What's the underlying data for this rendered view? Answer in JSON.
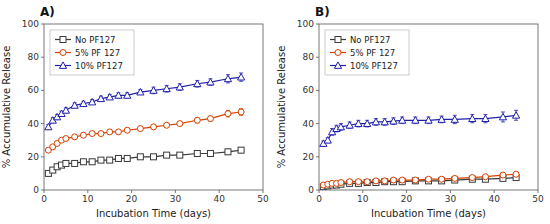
{
  "chart_data": [
    {
      "type": "line",
      "title": "A)",
      "xlabel": "Incubation Time (days)",
      "ylabel": "% Accumulative Release",
      "x": [
        1,
        2,
        3,
        4,
        5,
        7,
        9,
        11,
        13,
        15,
        17,
        19,
        22,
        25,
        28,
        31,
        35,
        38,
        42,
        45
      ],
      "series": [
        {
          "name": "No PF127",
          "color": "#3a3a3a",
          "marker": "square",
          "line_style": "solid",
          "values": [
            10,
            12,
            14,
            15,
            16,
            16,
            17,
            17,
            18,
            18,
            19,
            19,
            20,
            20,
            21,
            21,
            22,
            22,
            23,
            24
          ],
          "errors": [
            1,
            1,
            1,
            1,
            1,
            1,
            1,
            1,
            1,
            1,
            1,
            1,
            1,
            1,
            1,
            1,
            1.5,
            1.5,
            1.5,
            1.5
          ]
        },
        {
          "name": "5% PF 127",
          "color": "#d44000",
          "marker": "circle",
          "line_style": "solid",
          "values": [
            24,
            26,
            28,
            30,
            31,
            32,
            33,
            34,
            34,
            35,
            35,
            36,
            37,
            38,
            39,
            40,
            42,
            43,
            46,
            47
          ],
          "errors": [
            1,
            1,
            1,
            1,
            1,
            1,
            1,
            1,
            1,
            1,
            1,
            1,
            1,
            1,
            1,
            1,
            1.5,
            1.5,
            2,
            2
          ]
        },
        {
          "name": "10% PF127",
          "color": "#2020aa",
          "marker": "triangle",
          "line_style": "solid",
          "values": [
            38,
            42,
            44,
            46,
            48,
            51,
            52,
            53,
            55,
            56,
            57,
            57,
            59,
            60,
            61,
            62,
            64,
            65,
            67,
            68
          ],
          "errors": [
            1.5,
            1.5,
            1.5,
            1.5,
            1.5,
            1.5,
            1.5,
            1.5,
            1.5,
            1.5,
            1.5,
            1.5,
            1.5,
            2,
            2,
            2,
            2,
            2,
            2.5,
            2.5
          ]
        }
      ],
      "xlim": [
        0,
        50
      ],
      "ylim": [
        0,
        100
      ],
      "xticks": [
        0,
        10,
        20,
        30,
        40,
        50
      ],
      "yticks": [
        0,
        20,
        40,
        60,
        80,
        100
      ],
      "grid": false,
      "legend": "upper left"
    },
    {
      "type": "line",
      "title": "B)",
      "xlabel": "Incubation Time (days)",
      "ylabel": "% Accumulative Release",
      "x": [
        1,
        2,
        3,
        4,
        5,
        7,
        9,
        11,
        13,
        15,
        17,
        19,
        22,
        25,
        28,
        31,
        35,
        38,
        42,
        45
      ],
      "series": [
        {
          "name": "No PF127",
          "color": "#3a3a3a",
          "marker": "square",
          "line_style": "solid",
          "values": [
            2,
            2.5,
            3,
            3,
            3.5,
            4,
            4,
            4.5,
            4.5,
            5,
            5,
            5,
            5.5,
            5.5,
            5.5,
            6,
            6.5,
            6.5,
            7,
            7.5
          ],
          "errors": [
            0.3,
            0.3,
            0.3,
            0.3,
            0.3,
            0.3,
            0.3,
            0.3,
            0.3,
            0.3,
            0.3,
            0.3,
            0.3,
            0.3,
            0.3,
            0.3,
            0.5,
            0.5,
            0.5,
            0.5
          ]
        },
        {
          "name": "5% PF 127",
          "color": "#d44000",
          "marker": "circle",
          "line_style": "solid",
          "values": [
            3,
            3.5,
            4,
            4,
            4.5,
            5,
            5,
            5,
            5.5,
            5.5,
            6,
            6,
            6,
            6.5,
            6.5,
            7,
            7.5,
            8,
            9,
            9.5
          ],
          "errors": [
            0.3,
            0.3,
            0.3,
            0.3,
            0.3,
            0.3,
            0.3,
            0.3,
            0.3,
            0.3,
            0.3,
            0.3,
            0.3,
            0.3,
            0.3,
            0.5,
            0.5,
            0.5,
            0.7,
            0.7
          ]
        },
        {
          "name": "10% PF127",
          "color": "#2020aa",
          "marker": "triangle",
          "line_style": "solid",
          "values": [
            28,
            30,
            35,
            37,
            38,
            39,
            40,
            40,
            41,
            41,
            41.5,
            42,
            42,
            42,
            42.5,
            42.5,
            43,
            43,
            44,
            45
          ],
          "errors": [
            1.5,
            1.5,
            2,
            2,
            2,
            2,
            2,
            2,
            2,
            2,
            2,
            2,
            2,
            2,
            2,
            2.5,
            2.5,
            2.5,
            3,
            3
          ]
        }
      ],
      "xlim": [
        0,
        50
      ],
      "ylim": [
        0,
        100
      ],
      "xticks": [
        0,
        10,
        20,
        30,
        40,
        50
      ],
      "yticks": [
        0,
        20,
        40,
        60,
        80,
        100
      ],
      "grid": false,
      "legend": "upper left"
    }
  ]
}
